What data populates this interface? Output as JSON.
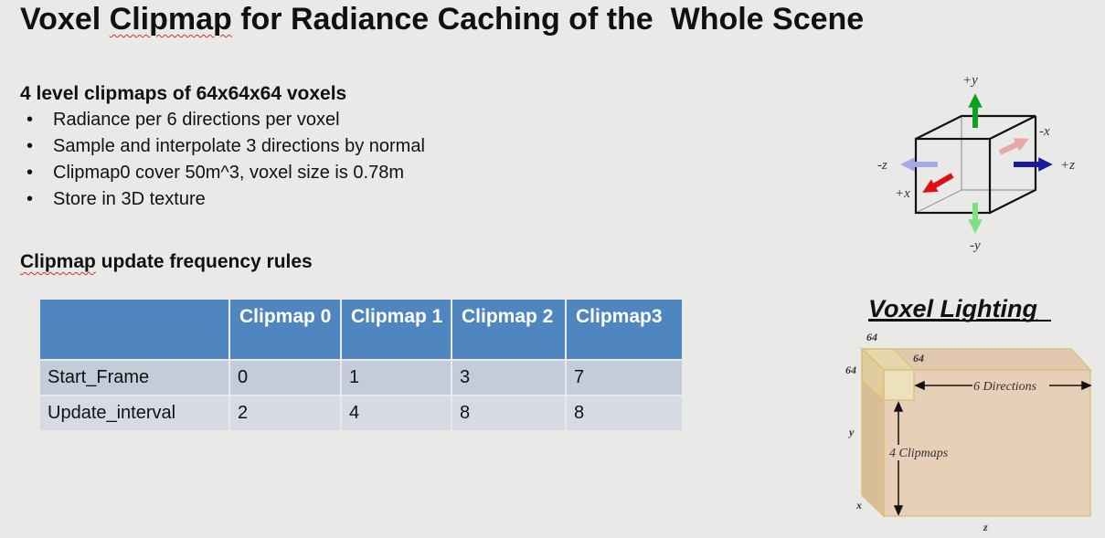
{
  "title": {
    "pre": "Voxel ",
    "underlined": "Clipmap",
    "post": " for Radiance Caching of the  Whole Scene"
  },
  "section1": {
    "heading": "4 level clipmaps of 64x64x64 voxels",
    "bullets": [
      "Radiance per 6 directions per voxel",
      "Sample and interpolate 3 directions by normal",
      "Clipmap0 cover 50m^3, voxel size is 0.78m",
      "Store in 3D texture"
    ],
    "bullet_glyph": "•"
  },
  "section2": {
    "heading_underlined": "Clipmap",
    "heading_rest": " update frequency rules"
  },
  "table": {
    "headers": [
      "",
      "Clipmap 0",
      "Clipmap 1",
      "Clipmap 2",
      "Clipmap3"
    ],
    "rows": [
      [
        "Start_Frame",
        "0",
        "1",
        "3",
        "7"
      ],
      [
        "Update_interval",
        "2",
        "4",
        "8",
        "8"
      ]
    ],
    "header_color": "#4f86c0"
  },
  "cube_diagram": {
    "labels": {
      "py": "+y",
      "ny": "-y",
      "pz": "+z",
      "nz": "-z",
      "px": "+x",
      "nx": "-x"
    },
    "colors": {
      "py": "#10a020",
      "ny": "#80e080",
      "pz": "#1a1aa0",
      "nz": "#a8a8e8",
      "px": "#e01010",
      "nx": "#e8a8a8"
    }
  },
  "voxel_lighting": {
    "title": "Voxel Lighting",
    "dim_top": "64",
    "dim_depth": "64",
    "dim_left": "64",
    "axis_y": "y",
    "axis_x": "x",
    "axis_z": "z",
    "directions_label": "6 Directions",
    "clipmaps_label": "4 Clipmaps",
    "colors": {
      "front": "#e8cfb8",
      "top": "#e2c8b0",
      "side": "#d9bc98",
      "small_front": "#ede0bc",
      "edge": "#d8c27a"
    }
  }
}
